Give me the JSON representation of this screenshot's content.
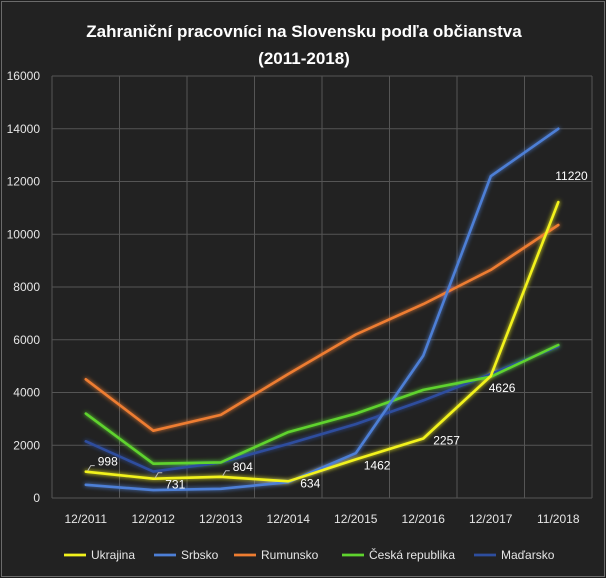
{
  "chart_data": {
    "type": "line",
    "title": "Zahraniční pracovníci na Slovensku podľa občianstva",
    "subtitle": "(2011-2018)",
    "xlabel": "",
    "ylabel": "",
    "categories": [
      "12/2011",
      "12/2012",
      "12/2013",
      "12/2014",
      "12/2015",
      "12/2016",
      "12/2017",
      "11/2018"
    ],
    "y_ticks": [
      "0",
      "2000",
      "4000",
      "6000",
      "8000",
      "10000",
      "12000",
      "14000",
      "16000"
    ],
    "ylim": [
      0,
      16000
    ],
    "grid": true,
    "legend_position": "bottom",
    "series": [
      {
        "name": "Ukrajina",
        "color": "#f2f21c",
        "values": [
          998,
          731,
          804,
          634,
          1462,
          2257,
          4626,
          11220
        ],
        "labels": [
          "998",
          "731",
          "804",
          "634",
          "1462",
          "2257",
          "4626",
          "11220"
        ]
      },
      {
        "name": "Srbsko",
        "color": "#4d7fd6",
        "values": [
          500,
          300,
          350,
          600,
          1700,
          5400,
          12200,
          14000
        ]
      },
      {
        "name": "Rumunsko",
        "color": "#ee7d31",
        "values": [
          4500,
          2550,
          3150,
          4700,
          6200,
          7350,
          8650,
          10350
        ]
      },
      {
        "name": "Česká republika",
        "color": "#5fd32e",
        "values": [
          3200,
          1300,
          1350,
          2500,
          3200,
          4100,
          4600,
          5800
        ]
      },
      {
        "name": "Maďarsko",
        "color": "#2e4e9e",
        "values": [
          2150,
          1000,
          1350,
          2050,
          2800,
          3700,
          4700,
          5750
        ]
      }
    ]
  }
}
